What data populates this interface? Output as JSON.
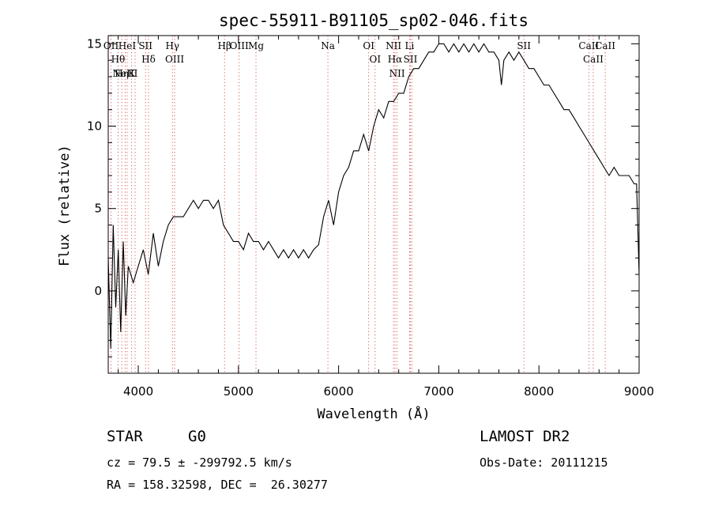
{
  "chart_data": {
    "type": "line",
    "title": "spec-55911-B91105_sp02-046.fits",
    "xlabel": "Wavelength (Å)",
    "ylabel": "Flux (relative)",
    "xlim": [
      3700,
      9000
    ],
    "ylim": [
      -5,
      15.5
    ],
    "x_ticks": [
      4000,
      5000,
      6000,
      7000,
      8000,
      9000
    ],
    "y_ticks": [
      0,
      5,
      10,
      15
    ],
    "grid": false,
    "series": [
      {
        "x": [
          3700,
          3725,
          3750,
          3775,
          3800,
          3825,
          3850,
          3875,
          3900,
          3950,
          4000,
          4050,
          4100,
          4150,
          4200,
          4250,
          4300,
          4350,
          4400,
          4450,
          4500,
          4550,
          4600,
          4650,
          4700,
          4750,
          4800,
          4850,
          4900,
          4950,
          5000,
          5050,
          5100,
          5150,
          5200,
          5250,
          5300,
          5350,
          5400,
          5450,
          5500,
          5550,
          5600,
          5650,
          5700,
          5750,
          5800,
          5850,
          5900,
          5950,
          6000,
          6050,
          6100,
          6150,
          6200,
          6250,
          6300,
          6350,
          6400,
          6450,
          6500,
          6550,
          6600,
          6650,
          6700,
          6750,
          6800,
          6850,
          6900,
          6950,
          7000,
          7050,
          7100,
          7150,
          7200,
          7250,
          7300,
          7350,
          7400,
          7450,
          7500,
          7550,
          7600,
          7625,
          7650,
          7700,
          7750,
          7800,
          7850,
          7900,
          7950,
          8000,
          8050,
          8100,
          8150,
          8200,
          8250,
          8300,
          8350,
          8400,
          8450,
          8500,
          8550,
          8600,
          8650,
          8700,
          8750,
          8800,
          8850,
          8900,
          8950,
          8975,
          9000
        ],
        "y": [
          2.0,
          -3.5,
          4.0,
          -1.0,
          2.5,
          -2.5,
          3.0,
          -1.5,
          1.5,
          0.5,
          1.5,
          2.5,
          1.0,
          3.5,
          1.5,
          3.0,
          4.0,
          4.5,
          4.5,
          4.5,
          5.0,
          5.5,
          5.0,
          5.5,
          5.5,
          5.0,
          5.5,
          4.0,
          3.5,
          3.0,
          3.0,
          2.5,
          3.5,
          3.0,
          3.0,
          2.5,
          3.0,
          2.5,
          2.0,
          2.5,
          2.0,
          2.5,
          2.0,
          2.5,
          2.0,
          2.5,
          2.8,
          4.5,
          5.5,
          4.0,
          6.0,
          7.0,
          7.5,
          8.5,
          8.5,
          9.5,
          8.5,
          10.0,
          11.0,
          10.5,
          11.5,
          11.5,
          12.0,
          12.0,
          13.0,
          13.5,
          13.5,
          14.0,
          14.5,
          14.5,
          15.0,
          15.0,
          14.5,
          15.0,
          14.5,
          15.0,
          14.5,
          15.0,
          14.5,
          15.0,
          14.5,
          14.5,
          14.0,
          12.5,
          14.0,
          14.5,
          14.0,
          14.5,
          14.0,
          13.5,
          13.5,
          13.0,
          12.5,
          12.5,
          12.0,
          11.5,
          11.0,
          11.0,
          10.5,
          10.0,
          9.5,
          9.0,
          8.5,
          8.0,
          7.5,
          7.0,
          7.5,
          7.0,
          7.0,
          7.0,
          6.5,
          6.5,
          1.0
        ]
      }
    ],
    "spectral_lines": [
      {
        "x": 3728,
        "label": "OII"
      },
      {
        "x": 3798,
        "label": "Hθ"
      },
      {
        "x": 3835,
        "label": "Hη"
      },
      {
        "x": 3869,
        "label": "NeIII"
      },
      {
        "x": 3889,
        "label": "HeI"
      },
      {
        "x": 3934,
        "label": "K"
      },
      {
        "x": 3968,
        "label": ""
      },
      {
        "x": 4072,
        "label": "SII"
      },
      {
        "x": 4102,
        "label": "Hδ"
      },
      {
        "x": 4341,
        "label": "Hγ"
      },
      {
        "x": 4363,
        "label": "OIII"
      },
      {
        "x": 4861,
        "label": "Hβ"
      },
      {
        "x": 5007,
        "label": "OIII"
      },
      {
        "x": 5175,
        "label": "Mg"
      },
      {
        "x": 5893,
        "label": "Na"
      },
      {
        "x": 6300,
        "label": "OI"
      },
      {
        "x": 6364,
        "label": "OI"
      },
      {
        "x": 6548,
        "label": "NII"
      },
      {
        "x": 6563,
        "label": "Hα"
      },
      {
        "x": 6584,
        "label": "NII"
      },
      {
        "x": 6708,
        "label": "Li"
      },
      {
        "x": 6717,
        "label": "SII"
      },
      {
        "x": 6731,
        "label": ""
      },
      {
        "x": 7850,
        "label": "SII"
      },
      {
        "x": 8498,
        "label": "CaII"
      },
      {
        "x": 8542,
        "label": "CaII"
      },
      {
        "x": 8662,
        "label": "CaII"
      }
    ]
  },
  "info": {
    "object_class": "STAR",
    "subclass": "G0",
    "redshift_line": "cz = 79.5 ± -299792.5 km/s",
    "coords_line": "RA = 158.32598, DEC =  26.30277",
    "survey": "LAMOST DR2",
    "obs_date": "Obs-Date: 20111215"
  },
  "colors": {
    "spectrum": "#000000",
    "line_marker": "#cc3333",
    "axis": "#000000"
  }
}
